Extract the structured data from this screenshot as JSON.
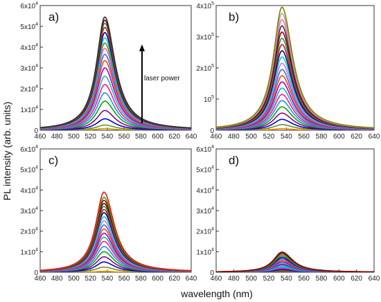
{
  "figure": {
    "ylabel": "PL intensity (arb. units)",
    "xlabel": "wavelength (nm)"
  },
  "chart_data": [
    {
      "type": "line",
      "panel_label": "a)",
      "annotation": "laser power",
      "xlim": [
        460,
        640
      ],
      "ylim": [
        0,
        60000
      ],
      "x_ticks": [
        460,
        480,
        500,
        520,
        540,
        560,
        580,
        600,
        620,
        640
      ],
      "y_ticks": [
        {
          "base": "0",
          "exp": ""
        },
        {
          "base": "1x10",
          "exp": "4"
        },
        {
          "base": "2x10",
          "exp": "4"
        },
        {
          "base": "3x10",
          "exp": "4"
        },
        {
          "base": "4x10",
          "exp": "4"
        },
        {
          "base": "5x10",
          "exp": "4"
        },
        {
          "base": "6x10",
          "exp": "4"
        }
      ],
      "peak_wavelength": 537,
      "series_peaks": [
        800,
        2500,
        5500,
        9500,
        14000,
        18000,
        22000,
        26000,
        30000,
        33500,
        36500,
        39500,
        42000,
        44500,
        47000,
        49500,
        51500,
        53000,
        54500
      ],
      "series_colors": [
        "#c8a000",
        "#6b8e23",
        "#0000cd",
        "#8b008b",
        "#00aa00",
        "#1e90ff",
        "#ff1493",
        "#20b2aa",
        "#9400d3",
        "#ff4500",
        "#4169e1",
        "#da70d6",
        "#808000",
        "#00ced1",
        "#000080",
        "#b22222",
        "#2e8b57",
        "#8b0000",
        "#333333"
      ]
    },
    {
      "type": "line",
      "panel_label": "b)",
      "xlim": [
        460,
        640
      ],
      "ylim": [
        0,
        400000
      ],
      "x_ticks": [
        460,
        480,
        500,
        520,
        540,
        560,
        580,
        600,
        620,
        640
      ],
      "y_ticks": [
        {
          "base": "0",
          "exp": ""
        },
        {
          "base": "10",
          "exp": "5"
        },
        {
          "base": "2x10",
          "exp": "5"
        },
        {
          "base": "3x10",
          "exp": "5"
        },
        {
          "base": "4x10",
          "exp": "5"
        }
      ],
      "peak_wavelength": 535,
      "series_peaks": [
        5000,
        18000,
        35000,
        55000,
        75000,
        95000,
        115000,
        135000,
        155000,
        175000,
        195000,
        215000,
        235000,
        255000,
        275000,
        295000,
        315000,
        335000,
        355000,
        375000,
        395000
      ],
      "series_colors": [
        "#ff8c00",
        "#6b8e23",
        "#0000cd",
        "#8b008b",
        "#00aa00",
        "#1e90ff",
        "#ff1493",
        "#20b2aa",
        "#9400d3",
        "#ff4500",
        "#4169e1",
        "#da70d6",
        "#00ced1",
        "#000080",
        "#b22222",
        "#2e8b57",
        "#8b0000",
        "#333333",
        "#ff69b4",
        "#a9a9a9",
        "#808000"
      ]
    },
    {
      "type": "line",
      "panel_label": "c)",
      "xlim": [
        460,
        640
      ],
      "ylim": [
        0,
        60000
      ],
      "x_ticks": [
        460,
        480,
        500,
        520,
        540,
        560,
        580,
        600,
        620,
        640
      ],
      "y_ticks": [
        {
          "base": "0",
          "exp": ""
        },
        {
          "base": "1x10",
          "exp": "4"
        },
        {
          "base": "2x10",
          "exp": "4"
        },
        {
          "base": "3x10",
          "exp": "4"
        },
        {
          "base": "4x10",
          "exp": "4"
        },
        {
          "base": "5x10",
          "exp": "4"
        },
        {
          "base": "6x10",
          "exp": "4"
        }
      ],
      "peak_wavelength": 536,
      "series_peaks": [
        500,
        2500,
        5000,
        7500,
        10000,
        12500,
        15000,
        17000,
        19000,
        21000,
        23000,
        25000,
        27000,
        29000,
        30500,
        32000,
        33500,
        35000,
        36500,
        39000
      ],
      "series_colors": [
        "#ffa500",
        "#6b8e23",
        "#0000cd",
        "#8b008b",
        "#00aa00",
        "#1e90ff",
        "#ff1493",
        "#20b2aa",
        "#9400d3",
        "#ff4500",
        "#4169e1",
        "#da70d6",
        "#00ced1",
        "#000080",
        "#b22222",
        "#2e8b57",
        "#8b0000",
        "#333333",
        "#808000",
        "#e31a1c"
      ]
    },
    {
      "type": "line",
      "panel_label": "d)",
      "xlim": [
        460,
        640
      ],
      "ylim": [
        0,
        60000
      ],
      "x_ticks": [
        460,
        480,
        500,
        520,
        540,
        560,
        580,
        600,
        620,
        640
      ],
      "y_ticks": [
        {
          "base": "0",
          "exp": ""
        },
        {
          "base": "1x10",
          "exp": "4"
        },
        {
          "base": "2x10",
          "exp": "4"
        },
        {
          "base": "3x10",
          "exp": "4"
        },
        {
          "base": "4x10",
          "exp": "4"
        },
        {
          "base": "5x10",
          "exp": "4"
        },
        {
          "base": "6x10",
          "exp": "4"
        }
      ],
      "peak_wavelength": 535,
      "series_peaks": [
        300,
        800,
        1300,
        1900,
        2500,
        3100,
        3700,
        4300,
        5000,
        5700,
        6400,
        7100,
        7800,
        8500,
        9200,
        9800
      ],
      "series_colors": [
        "#e31a1c",
        "#00aa00",
        "#0000cd",
        "#ff1493",
        "#1e90ff",
        "#00ced1",
        "#8b008b",
        "#20b2aa",
        "#9400d3",
        "#ff4500",
        "#4169e1",
        "#000080",
        "#2e8b57",
        "#808000",
        "#333333",
        "#8b0000"
      ]
    }
  ]
}
